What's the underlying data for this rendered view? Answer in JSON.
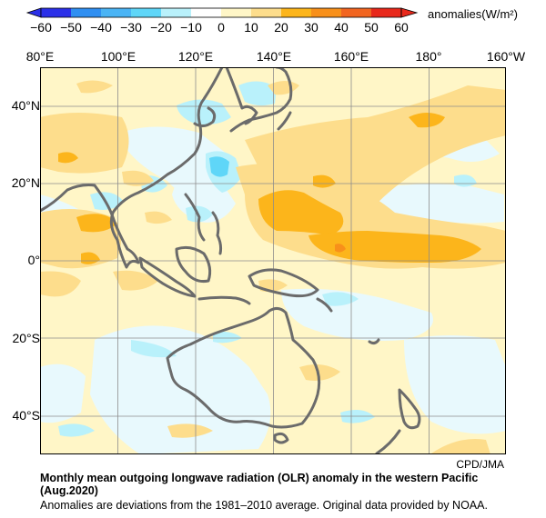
{
  "colorbar": {
    "ticks": [
      "−60",
      "−50",
      "−40",
      "−30",
      "−20",
      "−10",
      "0",
      "10",
      "20",
      "30",
      "40",
      "50",
      "60"
    ],
    "units": "anomalies(W/m²)",
    "colors": [
      "#2b30e8",
      "#2f8ff2",
      "#4ab4f5",
      "#5fd6f8",
      "#b9f1fb",
      "#ffffff",
      "#fff6c7",
      "#fddd8c",
      "#fcb51b",
      "#f8901a",
      "#f26520",
      "#e8281b"
    ]
  },
  "axes": {
    "lon_labels": [
      "80°E",
      "100°E",
      "120°E",
      "140°E",
      "160°E",
      "180°",
      "160°W"
    ],
    "lat_labels": [
      "40°N",
      "20°N",
      "0°",
      "20°S",
      "40°S"
    ]
  },
  "credit": "CPD/JMA",
  "caption": {
    "title": "Monthly mean outgoing longwave radiation (OLR) anomaly in the western Pacific (Aug.2020)",
    "note": "Anomalies are deviations from the 1981–2010 average. Original data provided by NOAA."
  }
}
